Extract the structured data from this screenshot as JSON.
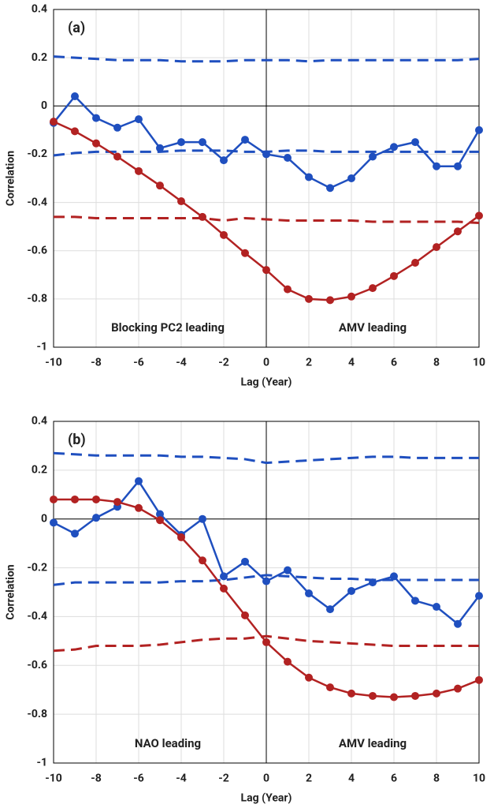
{
  "chart_data": [
    {
      "type": "line",
      "panel_label": "(a)",
      "x_label": "Lag (Year)",
      "y_label": "Correlation",
      "annotations": [
        "Blocking PC2 leading",
        "AMV leading"
      ],
      "xlim": [
        -10,
        10
      ],
      "ylim": [
        -1,
        0.4
      ],
      "xticks": [
        -10,
        -8,
        -6,
        -4,
        -2,
        0,
        2,
        4,
        6,
        8,
        10
      ],
      "yticks": [
        -1,
        -0.8,
        -0.6,
        -0.4,
        -0.2,
        0,
        0.2,
        0.4
      ],
      "grid": true,
      "reference_lines": {
        "x": 0,
        "y": 0
      },
      "x": [
        -10,
        -9,
        -8,
        -7,
        -6,
        -5,
        -4,
        -3,
        -2,
        -1,
        0,
        1,
        2,
        3,
        4,
        5,
        6,
        7,
        8,
        9,
        10
      ],
      "series": [
        {
          "color": "#1f4fbf",
          "style": "dashed",
          "values": [
            0.205,
            0.2,
            0.195,
            0.19,
            0.19,
            0.19,
            0.185,
            0.185,
            0.185,
            0.19,
            0.19,
            0.19,
            0.185,
            0.19,
            0.19,
            0.19,
            0.19,
            0.19,
            0.19,
            0.19,
            0.195
          ]
        },
        {
          "color": "#1f4fbf",
          "style": "dashed",
          "values": [
            -0.205,
            -0.195,
            -0.19,
            -0.19,
            -0.19,
            -0.19,
            -0.185,
            -0.185,
            -0.185,
            -0.19,
            -0.19,
            -0.185,
            -0.185,
            -0.19,
            -0.19,
            -0.19,
            -0.19,
            -0.19,
            -0.19,
            -0.19,
            -0.19
          ]
        },
        {
          "color": "#b22222",
          "style": "dashed",
          "values": [
            -0.46,
            -0.46,
            -0.465,
            -0.465,
            -0.465,
            -0.465,
            -0.465,
            -0.465,
            -0.475,
            -0.465,
            -0.47,
            -0.475,
            -0.475,
            -0.475,
            -0.475,
            -0.48,
            -0.48,
            -0.48,
            -0.48,
            -0.48,
            -0.485
          ]
        },
        {
          "color": "#1f4fbf",
          "style": "markers",
          "values": [
            -0.07,
            0.04,
            -0.05,
            -0.09,
            -0.055,
            -0.175,
            -0.15,
            -0.15,
            -0.225,
            -0.14,
            -0.2,
            -0.215,
            -0.295,
            -0.34,
            -0.3,
            -0.21,
            -0.17,
            -0.15,
            -0.25,
            -0.25,
            -0.1
          ]
        },
        {
          "color": "#b22222",
          "style": "markers",
          "values": [
            -0.065,
            -0.105,
            -0.155,
            -0.21,
            -0.27,
            -0.33,
            -0.395,
            -0.46,
            -0.535,
            -0.61,
            -0.68,
            -0.76,
            -0.8,
            -0.805,
            -0.79,
            -0.755,
            -0.705,
            -0.65,
            -0.585,
            -0.52,
            -0.455
          ]
        }
      ]
    },
    {
      "type": "line",
      "panel_label": "(b)",
      "x_label": "Lag (Year)",
      "y_label": "Correlation",
      "annotations": [
        "NAO leading",
        "AMV leading"
      ],
      "xlim": [
        -10,
        10
      ],
      "ylim": [
        -1,
        0.4
      ],
      "xticks": [
        -10,
        -8,
        -6,
        -4,
        -2,
        0,
        2,
        4,
        6,
        8,
        10
      ],
      "yticks": [
        -1,
        -0.8,
        -0.6,
        -0.4,
        -0.2,
        0,
        0.2,
        0.4
      ],
      "grid": true,
      "reference_lines": {
        "x": 0,
        "y": 0
      },
      "x": [
        -10,
        -9,
        -8,
        -7,
        -6,
        -5,
        -4,
        -3,
        -2,
        -1,
        0,
        1,
        2,
        3,
        4,
        5,
        6,
        7,
        8,
        9,
        10
      ],
      "series": [
        {
          "color": "#1f4fbf",
          "style": "dashed",
          "values": [
            0.27,
            0.265,
            0.26,
            0.26,
            0.26,
            0.26,
            0.255,
            0.255,
            0.25,
            0.245,
            0.23,
            0.235,
            0.24,
            0.245,
            0.25,
            0.255,
            0.255,
            0.25,
            0.25,
            0.25,
            0.25
          ]
        },
        {
          "color": "#1f4fbf",
          "style": "dashed",
          "values": [
            -0.27,
            -0.26,
            -0.26,
            -0.26,
            -0.26,
            -0.26,
            -0.255,
            -0.255,
            -0.25,
            -0.24,
            -0.23,
            -0.235,
            -0.24,
            -0.245,
            -0.245,
            -0.25,
            -0.25,
            -0.25,
            -0.25,
            -0.25,
            -0.25
          ]
        },
        {
          "color": "#b22222",
          "style": "dashed",
          "values": [
            -0.54,
            -0.535,
            -0.52,
            -0.52,
            -0.52,
            -0.515,
            -0.505,
            -0.495,
            -0.49,
            -0.49,
            -0.48,
            -0.49,
            -0.5,
            -0.505,
            -0.51,
            -0.515,
            -0.52,
            -0.52,
            -0.52,
            -0.52,
            -0.52
          ]
        },
        {
          "color": "#1f4fbf",
          "style": "markers",
          "values": [
            -0.015,
            -0.06,
            0.005,
            0.05,
            0.155,
            0.02,
            -0.065,
            0,
            -0.235,
            -0.175,
            -0.255,
            -0.21,
            -0.305,
            -0.37,
            -0.295,
            -0.26,
            -0.235,
            -0.335,
            -0.36,
            -0.43,
            -0.315
          ]
        },
        {
          "color": "#b22222",
          "style": "markers",
          "values": [
            0.08,
            0.08,
            0.08,
            0.07,
            0.045,
            -0.005,
            -0.075,
            -0.17,
            -0.285,
            -0.395,
            -0.505,
            -0.585,
            -0.65,
            -0.69,
            -0.715,
            -0.725,
            -0.73,
            -0.725,
            -0.715,
            -0.695,
            -0.66
          ]
        }
      ]
    }
  ]
}
